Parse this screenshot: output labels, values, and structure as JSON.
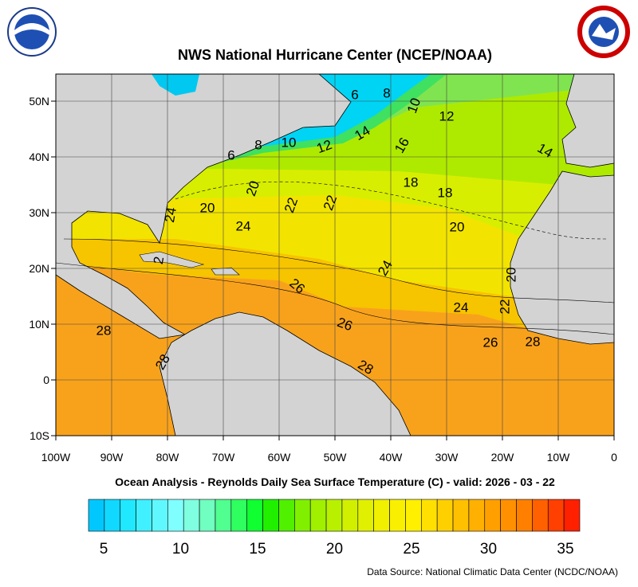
{
  "header": {
    "title": "NWS National Hurricane Center (NCEP/NOAA)"
  },
  "map": {
    "x_labels": [
      "100W",
      "90W",
      "80W",
      "70W",
      "60W",
      "50W",
      "40W",
      "30W",
      "20W",
      "10W",
      "0"
    ],
    "y_labels": [
      "50N",
      "40N",
      "30N",
      "20N",
      "10N",
      "0",
      "10S"
    ],
    "contour_labels": [
      "6",
      "8",
      "10",
      "12",
      "14",
      "16",
      "14",
      "6",
      "8",
      "10",
      "12",
      "18",
      "18",
      "20",
      "22",
      "22",
      "20",
      "24",
      "24",
      "20",
      "24",
      "20",
      "26",
      "24",
      "22",
      "26",
      "28",
      "26",
      "28",
      "28",
      "28",
      "2"
    ],
    "caption": "Ocean Analysis - Reynolds Daily Sea Surface Temperature (C) - valid: 2026 - 03 - 22"
  },
  "colorbar": {
    "ticks": [
      "5",
      "10",
      "15",
      "20",
      "25",
      "30",
      "35"
    ],
    "colors": [
      "#00c8ff",
      "#10d8ff",
      "#20e8ff",
      "#40f0ff",
      "#60f8ff",
      "#80ffff",
      "#80ffe0",
      "#70ffc0",
      "#50ff90",
      "#30ff60",
      "#10ff30",
      "#20f000",
      "#50f000",
      "#80f000",
      "#a0f000",
      "#b8f000",
      "#d0f000",
      "#e0f000",
      "#f0f000",
      "#f8f000",
      "#fff000",
      "#ffe000",
      "#ffd000",
      "#ffc000",
      "#ffb000",
      "#ffa000",
      "#ff9000",
      "#ff8000",
      "#ff6000",
      "#ff4000",
      "#ff2000"
    ]
  },
  "footer": {
    "source": "Data Source: National Climatic Data Center (NCDC/NOAA)"
  }
}
